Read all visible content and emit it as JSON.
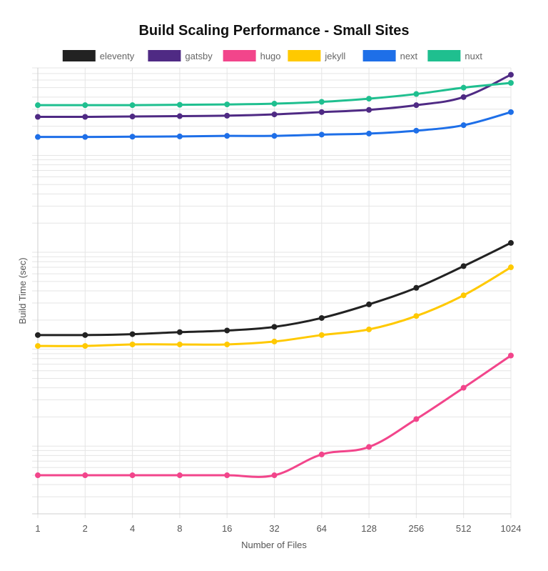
{
  "chart_data": {
    "type": "line",
    "title": "Build Scaling Performance - Small Sites",
    "xlabel": "Number of Files",
    "ylabel": "Build Time (sec)",
    "y_scale": "log",
    "ylim": [
      0.02,
      800
    ],
    "grid": true,
    "legend_position": "top",
    "categories": [
      "1",
      "2",
      "4",
      "8",
      "16",
      "32",
      "64",
      "128",
      "256",
      "512",
      "1024"
    ],
    "series": [
      {
        "name": "eleventy",
        "color": "#222222",
        "values": [
          1.4,
          1.4,
          1.43,
          1.5,
          1.56,
          1.7,
          2.1,
          2.9,
          4.3,
          7.2,
          12.5
        ]
      },
      {
        "name": "gatsby",
        "color": "#4f2a84",
        "values": [
          250,
          250,
          252,
          254,
          257,
          265,
          280,
          295,
          330,
          400,
          680
        ]
      },
      {
        "name": "hugo",
        "color": "#f2458b",
        "values": [
          0.05,
          0.05,
          0.05,
          0.05,
          0.05,
          0.05,
          0.082,
          0.098,
          0.19,
          0.4,
          0.86
        ]
      },
      {
        "name": "jekyll",
        "color": "#ffc900",
        "values": [
          1.08,
          1.08,
          1.12,
          1.12,
          1.12,
          1.2,
          1.4,
          1.6,
          2.2,
          3.6,
          7.0
        ]
      },
      {
        "name": "next",
        "color": "#1e6fe8",
        "values": [
          155,
          155,
          156,
          157,
          159,
          159,
          164,
          168,
          180,
          205,
          280
        ]
      },
      {
        "name": "nuxt",
        "color": "#1fbf8f",
        "values": [
          330,
          330,
          330,
          333,
          336,
          342,
          357,
          385,
          430,
          500,
          560
        ]
      }
    ]
  }
}
